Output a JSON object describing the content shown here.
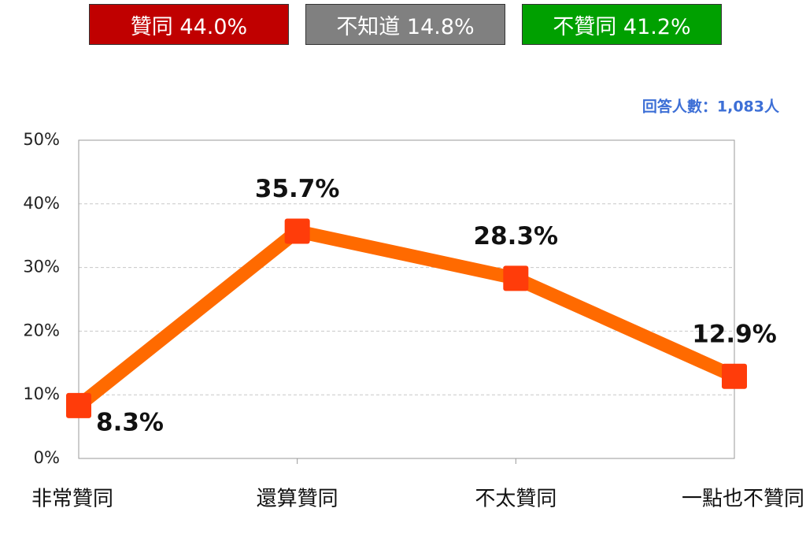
{
  "chart_data": {
    "type": "line",
    "summary": [
      {
        "text": "贊同 44.0%",
        "color": "#c00000"
      },
      {
        "text": "不知道 14.8%",
        "color": "#808080"
      },
      {
        "text": "不贊同 41.2%",
        "color": "#00a000"
      }
    ],
    "note": "回答人數：1,083人",
    "categories": [
      "非常贊同",
      "還算贊同",
      "不太贊同",
      "一點也不贊同"
    ],
    "values": [
      8.3,
      35.7,
      28.3,
      12.9
    ],
    "value_labels": [
      "8.3%",
      "35.7%",
      "28.3%",
      "12.9%"
    ],
    "line_color": "#ff6a00",
    "marker_color": "#ff3c0a",
    "ylim": [
      0,
      50
    ],
    "yticks": [
      {
        "value": 0,
        "label": "0%"
      },
      {
        "value": 10,
        "label": "10%"
      },
      {
        "value": 20,
        "label": "20%"
      },
      {
        "value": 30,
        "label": "30%"
      },
      {
        "value": 40,
        "label": "40%"
      },
      {
        "value": 50,
        "label": "50%"
      }
    ],
    "grid": true
  }
}
